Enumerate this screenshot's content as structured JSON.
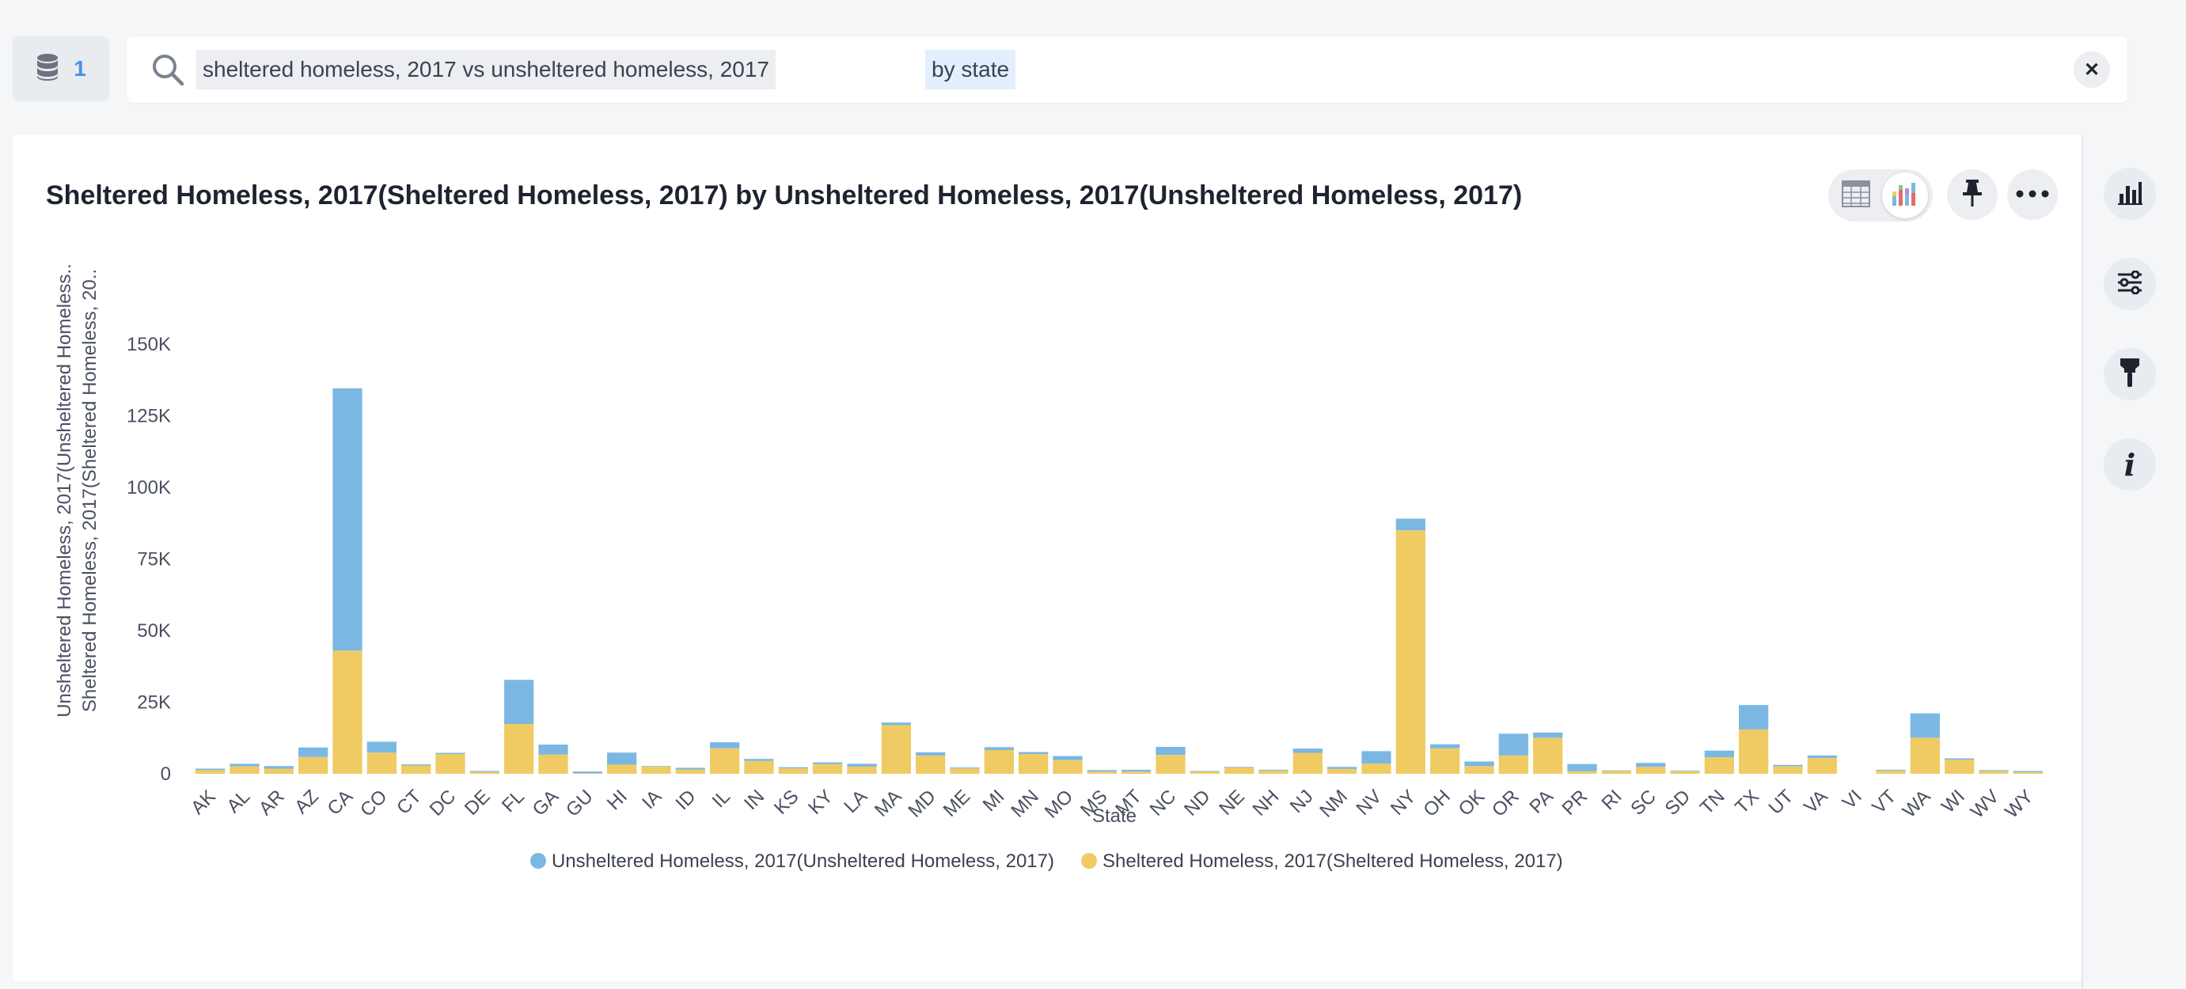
{
  "datasource": {
    "count": "1",
    "icon": "database-icon"
  },
  "search": {
    "tokens": [
      "sheltered homeless, 2017 vs unsheltered homeless, 2017",
      "by state"
    ],
    "icon": "search-icon",
    "clear_icon": "close-icon"
  },
  "chart_panel": {
    "title": "Sheltered Homeless, 2017(Sheltered Homeless, 2017) by Unsheltered Homeless, 2017(Unsheltered Homeless, 2017)",
    "toolbar": {
      "table_view_icon": "table-icon",
      "chart_view_icon": "chart-icon",
      "pin_icon": "pin-icon",
      "more_icon": "more-icon",
      "active_view": "chart"
    }
  },
  "sidebar": {
    "icons": [
      "bar-chart-icon",
      "settings-sliders-icon",
      "format-brush-icon",
      "info-icon"
    ]
  },
  "colors": {
    "unsheltered": "#7ab8e3",
    "sheltered": "#f0cb63",
    "accent": "#4a8fe7"
  },
  "chart_data": {
    "type": "bar",
    "stacked": true,
    "title": "",
    "xlabel": "State",
    "ylabel_lines": [
      "Unsheltered Homeless, 2017(Unsheltered Homeless..",
      "Sheltered Homeless, 2017(Sheltered Homeless, 20.."
    ],
    "ylim": [
      0,
      150000
    ],
    "yticks": [
      0,
      25000,
      50000,
      75000,
      100000,
      125000,
      150000
    ],
    "ytick_labels": [
      "0",
      "25K",
      "50K",
      "75K",
      "100K",
      "125K",
      "150K"
    ],
    "legend_position": "bottom",
    "categories": [
      "AK",
      "AL",
      "AR",
      "AZ",
      "CA",
      "CO",
      "CT",
      "DC",
      "DE",
      "FL",
      "GA",
      "GU",
      "HI",
      "IA",
      "ID",
      "IL",
      "IN",
      "KS",
      "KY",
      "LA",
      "MA",
      "MD",
      "ME",
      "MI",
      "MN",
      "MO",
      "MS",
      "MT",
      "NC",
      "ND",
      "NE",
      "NH",
      "NJ",
      "NM",
      "NV",
      "NY",
      "OH",
      "OK",
      "OR",
      "PA",
      "PR",
      "RI",
      "SC",
      "SD",
      "TN",
      "TX",
      "UT",
      "VA",
      "VI",
      "VT",
      "WA",
      "WI",
      "WV",
      "WY"
    ],
    "series": [
      {
        "name": "Sheltered Homeless, 2017(Sheltered Homeless, 2017)",
        "color": "#f0cb63",
        "values": [
          1300,
          2600,
          1800,
          5900,
          43000,
          7400,
          2900,
          6900,
          700,
          17400,
          6700,
          200,
          3200,
          2500,
          1500,
          8900,
          4500,
          1900,
          3400,
          2500,
          17000,
          6400,
          1900,
          8300,
          6900,
          4800,
          800,
          800,
          6600,
          800,
          2200,
          1100,
          7300,
          1700,
          3600,
          85000,
          8900,
          2700,
          6400,
          12600,
          900,
          1000,
          2400,
          900,
          5800,
          15500,
          2600,
          5500,
          0,
          1100,
          12600,
          4900,
          1000,
          600
        ]
      },
      {
        "name": "Unsheltered Homeless, 2017(Unsheltered Homeless, 2017)",
        "color": "#7ab8e3",
        "values": [
          500,
          900,
          900,
          3300,
          91600,
          3800,
          400,
          400,
          300,
          15400,
          3500,
          600,
          4200,
          200,
          600,
          2100,
          700,
          400,
          600,
          1000,
          900,
          1100,
          300,
          1000,
          700,
          1400,
          500,
          600,
          2800,
          200,
          200,
          300,
          1500,
          700,
          4300,
          4100,
          1400,
          1600,
          7600,
          1800,
          2500,
          200,
          1400,
          200,
          2300,
          8500,
          500,
          900,
          0,
          300,
          8500,
          500,
          300,
          400
        ]
      }
    ]
  }
}
